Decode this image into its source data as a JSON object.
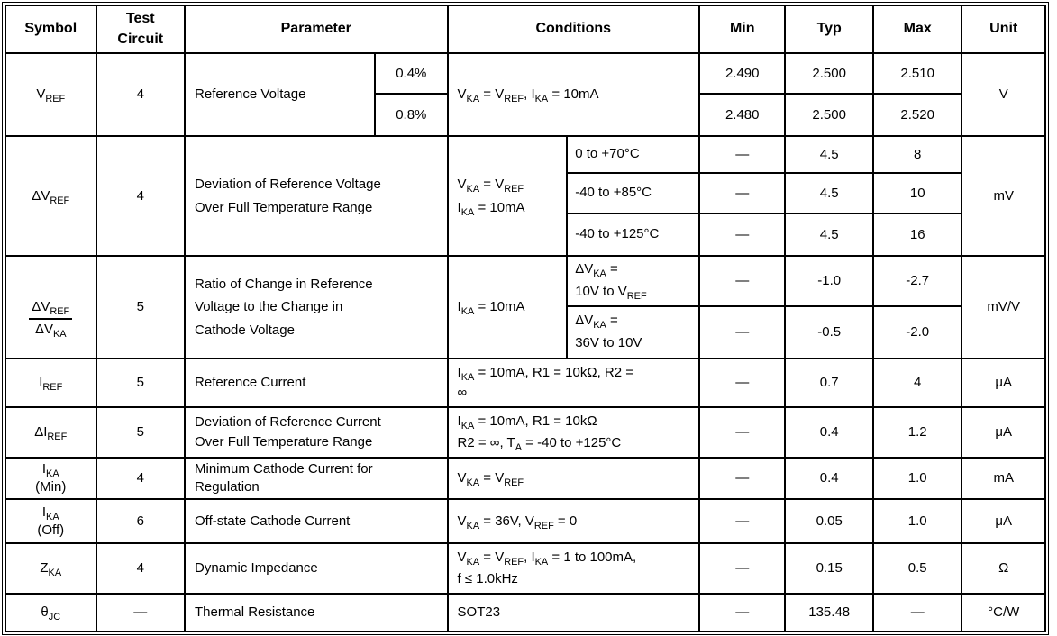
{
  "table": {
    "headers": {
      "symbol": "Symbol",
      "test_circuit": "Test\nCircuit",
      "parameter": "Parameter",
      "conditions": "Conditions",
      "min": "Min",
      "typ": "Typ",
      "max": "Max",
      "unit": "Unit"
    },
    "rows": {
      "vref": {
        "symbol": "V~REF~",
        "test_circuit": "4",
        "parameter": "Reference Voltage",
        "tolerance_a": "0.4%",
        "tolerance_b": "0.8%",
        "conditions": "V~KA~ = V~REF~, I~KA~ = 10mA",
        "a": {
          "min": "2.490",
          "typ": "2.500",
          "max": "2.510"
        },
        "b": {
          "min": "2.480",
          "typ": "2.500",
          "max": "2.520"
        },
        "unit": "V"
      },
      "dvref": {
        "symbol": "ΔV~REF~",
        "test_circuit": "4",
        "parameter": "Deviation of Reference Voltage\nOver Full Temperature Range",
        "conditions_left": "V~KA~ = V~REF~\nI~KA~ = 10mA",
        "a": {
          "range": "0 to +70°C",
          "min": "—",
          "typ": "4.5",
          "max": "8"
        },
        "b": {
          "range": "-40 to +85°C",
          "min": "—",
          "typ": "4.5",
          "max": "10"
        },
        "c": {
          "range": "-40 to +125°C",
          "min": "—",
          "typ": "4.5",
          "max": "16"
        },
        "unit": "mV"
      },
      "dvref_dvka": {
        "symbol_num": "ΔV~REF~",
        "symbol_den": "ΔV~KA~",
        "test_circuit": "5",
        "parameter": "Ratio of Change in Reference\nVoltage to the Change in\nCathode Voltage",
        "conditions_left": "I~KA~ = 10mA",
        "a": {
          "range": "ΔV~KA~ =\n10V to V~REF~",
          "min": "—",
          "typ": "-1.0",
          "max": "-2.7"
        },
        "b": {
          "range": "ΔV~KA~ =\n36V to 10V",
          "min": "—",
          "typ": "-0.5",
          "max": "-2.0"
        },
        "unit": "mV/V"
      },
      "iref": {
        "symbol": "I~REF~",
        "test_circuit": "5",
        "parameter": "Reference Current",
        "conditions": "I~KA~ = 10mA, R1 = 10kΩ, R2 =\n∞",
        "min": "—",
        "typ": "0.7",
        "max": "4",
        "unit": "μA"
      },
      "diref": {
        "symbol": "ΔI~REF~",
        "test_circuit": "5",
        "parameter": "Deviation of Reference Current\nOver Full Temperature Range",
        "conditions": "I~KA~ = 10mA, R1 = 10kΩ\nR2 = ∞, T~A~ = -40 to +125°C",
        "min": "—",
        "typ": "0.4",
        "max": "1.2",
        "unit": "μA"
      },
      "ika_min": {
        "symbol": "I~KA~\n(Min)",
        "test_circuit": "4",
        "parameter": "Minimum Cathode Current for\nRegulation",
        "conditions": "V~KA~ = V~REF~",
        "min": "—",
        "typ": "0.4",
        "max": "1.0",
        "unit": "mA"
      },
      "ika_off": {
        "symbol": "I~KA~\n(Off)",
        "test_circuit": "6",
        "parameter": "Off-state Cathode Current",
        "conditions": "V~KA~ = 36V, V~REF~ = 0",
        "min": "—",
        "typ": "0.05",
        "max": "1.0",
        "unit": "μA"
      },
      "zka": {
        "symbol": "Z~KA~",
        "test_circuit": "4",
        "parameter": "Dynamic Impedance",
        "conditions": "V~KA~ = V~REF~, I~KA~ = 1 to 100mA,\nf ≤ 1.0kHz",
        "min": "—",
        "typ": "0.15",
        "max": "0.5",
        "unit": "Ω"
      },
      "theta_jc": {
        "symbol": "θ~JC~",
        "test_circuit": "—",
        "parameter": "Thermal Resistance",
        "conditions": "SOT23",
        "min": "—",
        "typ": "135.48",
        "max": "—",
        "unit": "°C/W"
      }
    }
  }
}
